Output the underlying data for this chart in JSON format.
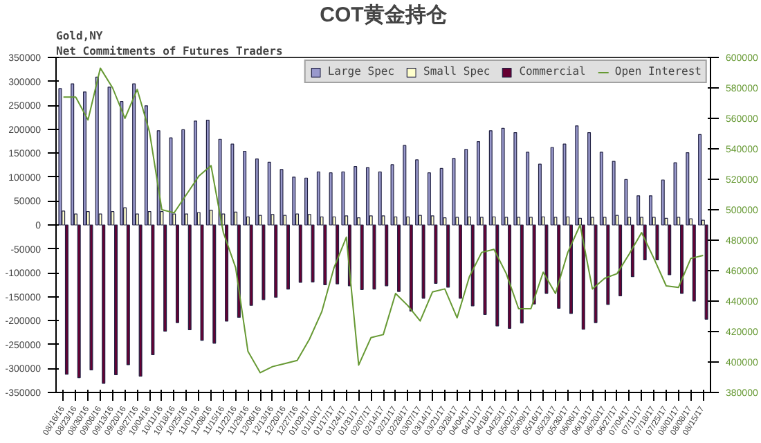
{
  "chart_data": {
    "type": "bar",
    "title": "COT黄金持仓",
    "subtitle": [
      "Gold,NY",
      "Net Commitments of Futures Traders"
    ],
    "categories": [
      "08/16/16",
      "08/23/16",
      "08/30/16",
      "09/06/16",
      "09/13/16",
      "09/20/16",
      "09/27/16",
      "10/04/16",
      "10/11/16",
      "10/18/16",
      "10/25/16",
      "11/01/16",
      "11/08/16",
      "11/15/16",
      "11/22/16",
      "11/29/16",
      "12/06/16",
      "12/13/16",
      "12/20/16",
      "12/27/16",
      "01/03/17",
      "01/10/17",
      "01/17/17",
      "01/24/17",
      "01/31/17",
      "02/07/17",
      "02/14/17",
      "02/21/17",
      "02/28/17",
      "03/07/17",
      "03/14/17",
      "03/21/17",
      "03/28/17",
      "04/04/17",
      "04/11/17",
      "04/18/17",
      "04/25/17",
      "05/02/17",
      "05/09/17",
      "05/16/17",
      "05/23/17",
      "05/30/17",
      "06/06/17",
      "06/13/17",
      "06/20/17",
      "06/27/17",
      "07/04/17",
      "07/11/17",
      "07/18/17",
      "07/25/17",
      "08/01/17",
      "08/08/17",
      "08/15/17"
    ],
    "series": [
      {
        "name": "Large Spec",
        "color": "#9999cc",
        "values": [
          285000,
          295000,
          278000,
          309000,
          288000,
          258000,
          295000,
          249000,
          197000,
          182000,
          199000,
          217000,
          219000,
          179000,
          169000,
          154000,
          138000,
          131000,
          116000,
          100000,
          98000,
          111000,
          109000,
          111000,
          122000,
          120000,
          111000,
          126000,
          166000,
          136000,
          109000,
          118000,
          139000,
          158000,
          174000,
          197000,
          202000,
          193000,
          152000,
          127000,
          162000,
          169000,
          207000,
          193000,
          152000,
          133000,
          95000,
          61000,
          61000,
          94000,
          130000,
          151000,
          189000
        ]
      },
      {
        "name": "Small Spec",
        "color": "#ffffcc",
        "values": [
          29000,
          23000,
          28000,
          23000,
          28000,
          36000,
          23000,
          28000,
          28000,
          23000,
          23000,
          26000,
          31000,
          23000,
          27000,
          17000,
          20000,
          22000,
          20000,
          23000,
          22000,
          17000,
          17000,
          19000,
          15000,
          19000,
          19000,
          17000,
          17000,
          20000,
          19000,
          15000,
          16000,
          17000,
          16000,
          17000,
          16000,
          16000,
          16000,
          17000,
          16000,
          17000,
          14000,
          16000,
          16000,
          20000,
          16000,
          16000,
          16000,
          14000,
          16000,
          13000,
          10000
        ]
      },
      {
        "name": "Commercial",
        "color": "#660033",
        "values": [
          -312000,
          -319000,
          -303000,
          -331000,
          -313000,
          -292000,
          -316000,
          -271000,
          -222000,
          -204000,
          -219000,
          -241000,
          -247000,
          -201000,
          -193000,
          -168000,
          -156000,
          -151000,
          -134000,
          -120000,
          -119000,
          -125000,
          -123000,
          -127000,
          -135000,
          -134000,
          -127000,
          -139000,
          -180000,
          -153000,
          -122000,
          -130000,
          -153000,
          -169000,
          -187000,
          -211000,
          -216000,
          -205000,
          -165000,
          -143000,
          -174000,
          -185000,
          -218000,
          -204000,
          -166000,
          -148000,
          -108000,
          -73000,
          -73000,
          -104000,
          -143000,
          -159000,
          -197000
        ]
      },
      {
        "name": "Open Interest",
        "type": "line",
        "axis": "y2",
        "color": "#669933",
        "values": [
          574000,
          574000,
          559000,
          593000,
          580000,
          560000,
          579000,
          551000,
          500000,
          498000,
          510000,
          522000,
          529000,
          485000,
          462000,
          407000,
          393000,
          397000,
          399000,
          401000,
          415000,
          433000,
          462000,
          482000,
          398000,
          416000,
          418000,
          445000,
          437000,
          427000,
          446000,
          448000,
          429000,
          456000,
          472000,
          474000,
          458000,
          435000,
          435000,
          459000,
          445000,
          472000,
          490000,
          448000,
          455000,
          458000,
          471000,
          485000,
          468000,
          450000,
          449000,
          468000,
          470000
        ]
      }
    ],
    "ylim": [
      -350000,
      350000
    ],
    "yticks": [
      -350000,
      -300000,
      -250000,
      -200000,
      -150000,
      -100000,
      -50000,
      0,
      50000,
      100000,
      150000,
      200000,
      250000,
      300000,
      350000
    ],
    "y2lim": [
      380000,
      600000
    ],
    "y2ticks": [
      380000,
      400000,
      420000,
      440000,
      460000,
      480000,
      500000,
      520000,
      540000,
      560000,
      580000,
      600000
    ],
    "grid": false,
    "legend": "top right"
  }
}
